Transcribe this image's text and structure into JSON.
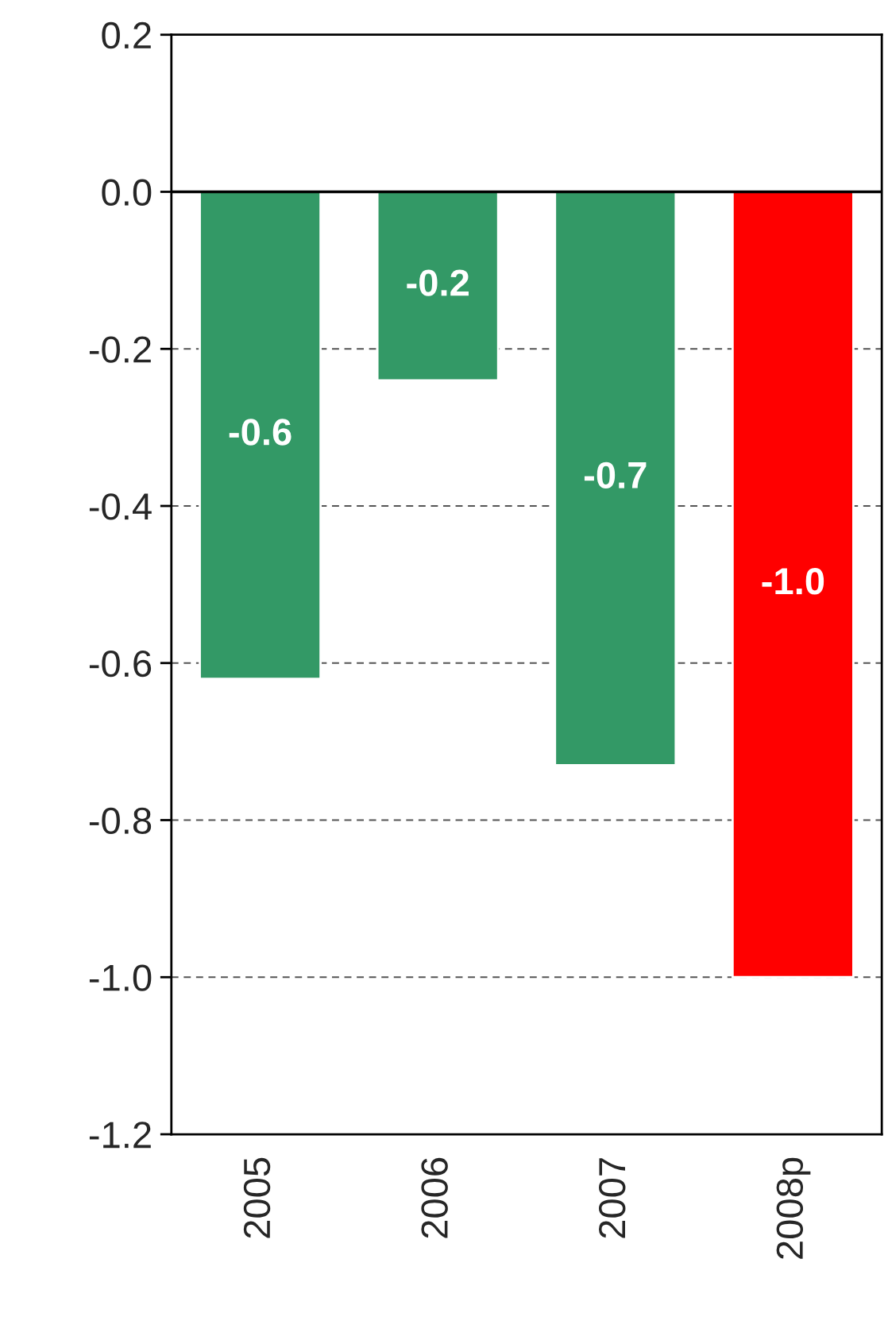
{
  "chart_data": {
    "type": "bar",
    "categories": [
      "2005",
      "2006",
      "2007",
      "2008p"
    ],
    "values": [
      -0.62,
      -0.24,
      -0.73,
      -1.0
    ],
    "value_labels": [
      "-0.6",
      "-0.2",
      "-0.7",
      "-1.0"
    ],
    "colors": [
      "#339966",
      "#339966",
      "#339966",
      "#ff0000"
    ],
    "ylim": [
      -1.2,
      0.2
    ],
    "yticks": [
      {
        "value": -1.2,
        "label": "-1.2"
      },
      {
        "value": -1.0,
        "label": "-1.0"
      },
      {
        "value": -0.8,
        "label": "-0.8"
      },
      {
        "value": -0.6,
        "label": "-0.6"
      },
      {
        "value": -0.4,
        "label": "-0.4"
      },
      {
        "value": -0.2,
        "label": "-0.2"
      },
      {
        "value": 0.0,
        "label": "0.0"
      },
      {
        "value": 0.2,
        "label": "0.2"
      }
    ],
    "ref_lines": [
      {
        "axis": "y",
        "value": 0,
        "color": "#000000",
        "line_style": "solid"
      }
    ],
    "grid": "y"
  }
}
